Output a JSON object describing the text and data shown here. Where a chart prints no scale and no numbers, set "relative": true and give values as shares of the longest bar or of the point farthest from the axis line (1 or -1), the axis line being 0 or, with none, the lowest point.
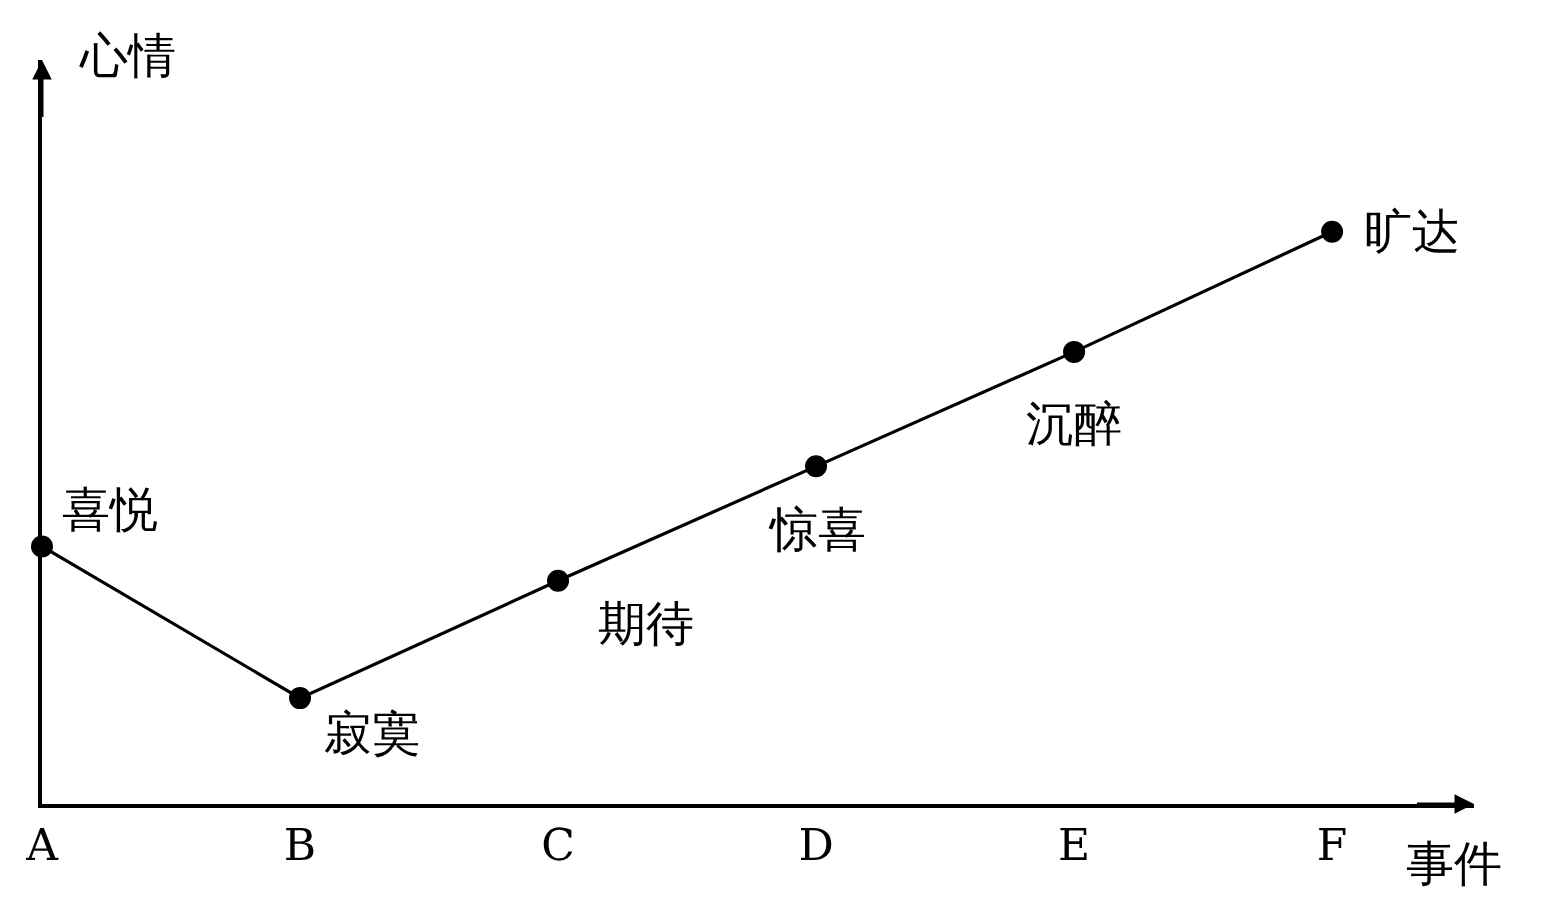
{
  "chart_data": {
    "type": "line",
    "relative": true,
    "xlabel": "事件",
    "ylabel": "心情",
    "categories": [
      "A",
      "B",
      "C",
      "D",
      "E",
      "F"
    ],
    "series": [
      {
        "color": "#000000",
        "values": [
          0.45,
          0.185,
          0.39,
          0.59,
          0.79,
          1.0
        ]
      }
    ],
    "marker": "circle",
    "line_style": "solid",
    "annotations": [
      {
        "text": "喜悦",
        "x": "A",
        "y": 0.45
      },
      {
        "text": "寂寞",
        "x": "B",
        "y": 0.185
      },
      {
        "text": "期待",
        "x": "C",
        "y": 0.39
      },
      {
        "text": "惊喜",
        "x": "D",
        "y": 0.59
      },
      {
        "text": "沉醉",
        "x": "E",
        "y": 0.79
      },
      {
        "text": "旷达",
        "x": "F",
        "y": 1.0
      }
    ]
  }
}
